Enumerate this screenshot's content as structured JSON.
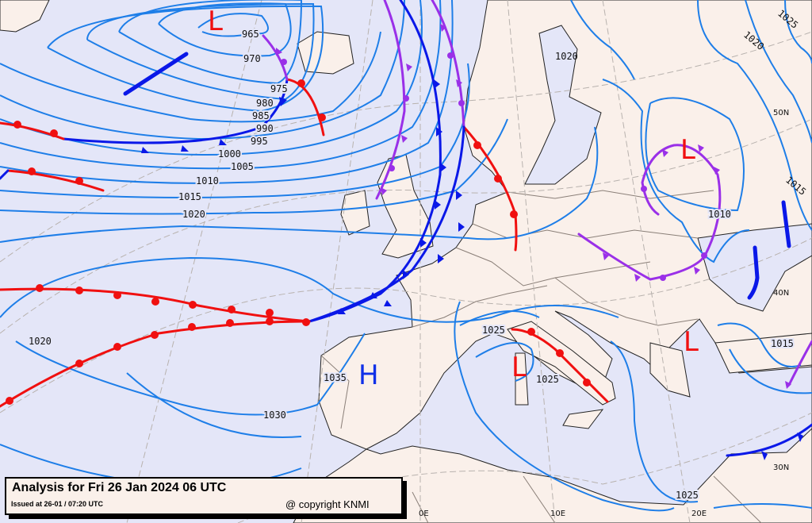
{
  "colors": {
    "sea": "#e4e6f8",
    "land": "#faf0ea",
    "isobar": "#1e7ee8",
    "cold_front": "#0a18e8",
    "warm_front": "#f01010",
    "occluded_front": "#9a30e8",
    "low": "#f01010",
    "high": "#1030e8"
  },
  "legend": {
    "title": "Analysis for Fri 26 Jan 2024 06 UTC",
    "issued": "Issued at 26-01 / 07:20 UTC",
    "copyright": "@ copyright KNMI"
  },
  "pressure_centers": {
    "low_iceland": "L",
    "low_ukraine": "L",
    "low_corsica": "L",
    "low_aegean": "L",
    "high_iberia": "H"
  },
  "isobar_labels": [
    "965",
    "970",
    "975",
    "980",
    "985",
    "990",
    "995",
    "1000",
    "1005",
    "1010",
    "1015",
    "1020",
    "1020",
    "1035",
    "1030",
    "1025",
    "1025",
    "1010",
    "1015",
    "1025",
    "1020",
    "1020",
    "1025",
    "1015"
  ],
  "graticule_labels": {
    "lat": [
      "50N",
      "40N",
      "30N"
    ],
    "lon": [
      "0E",
      "10E",
      "20E"
    ]
  }
}
